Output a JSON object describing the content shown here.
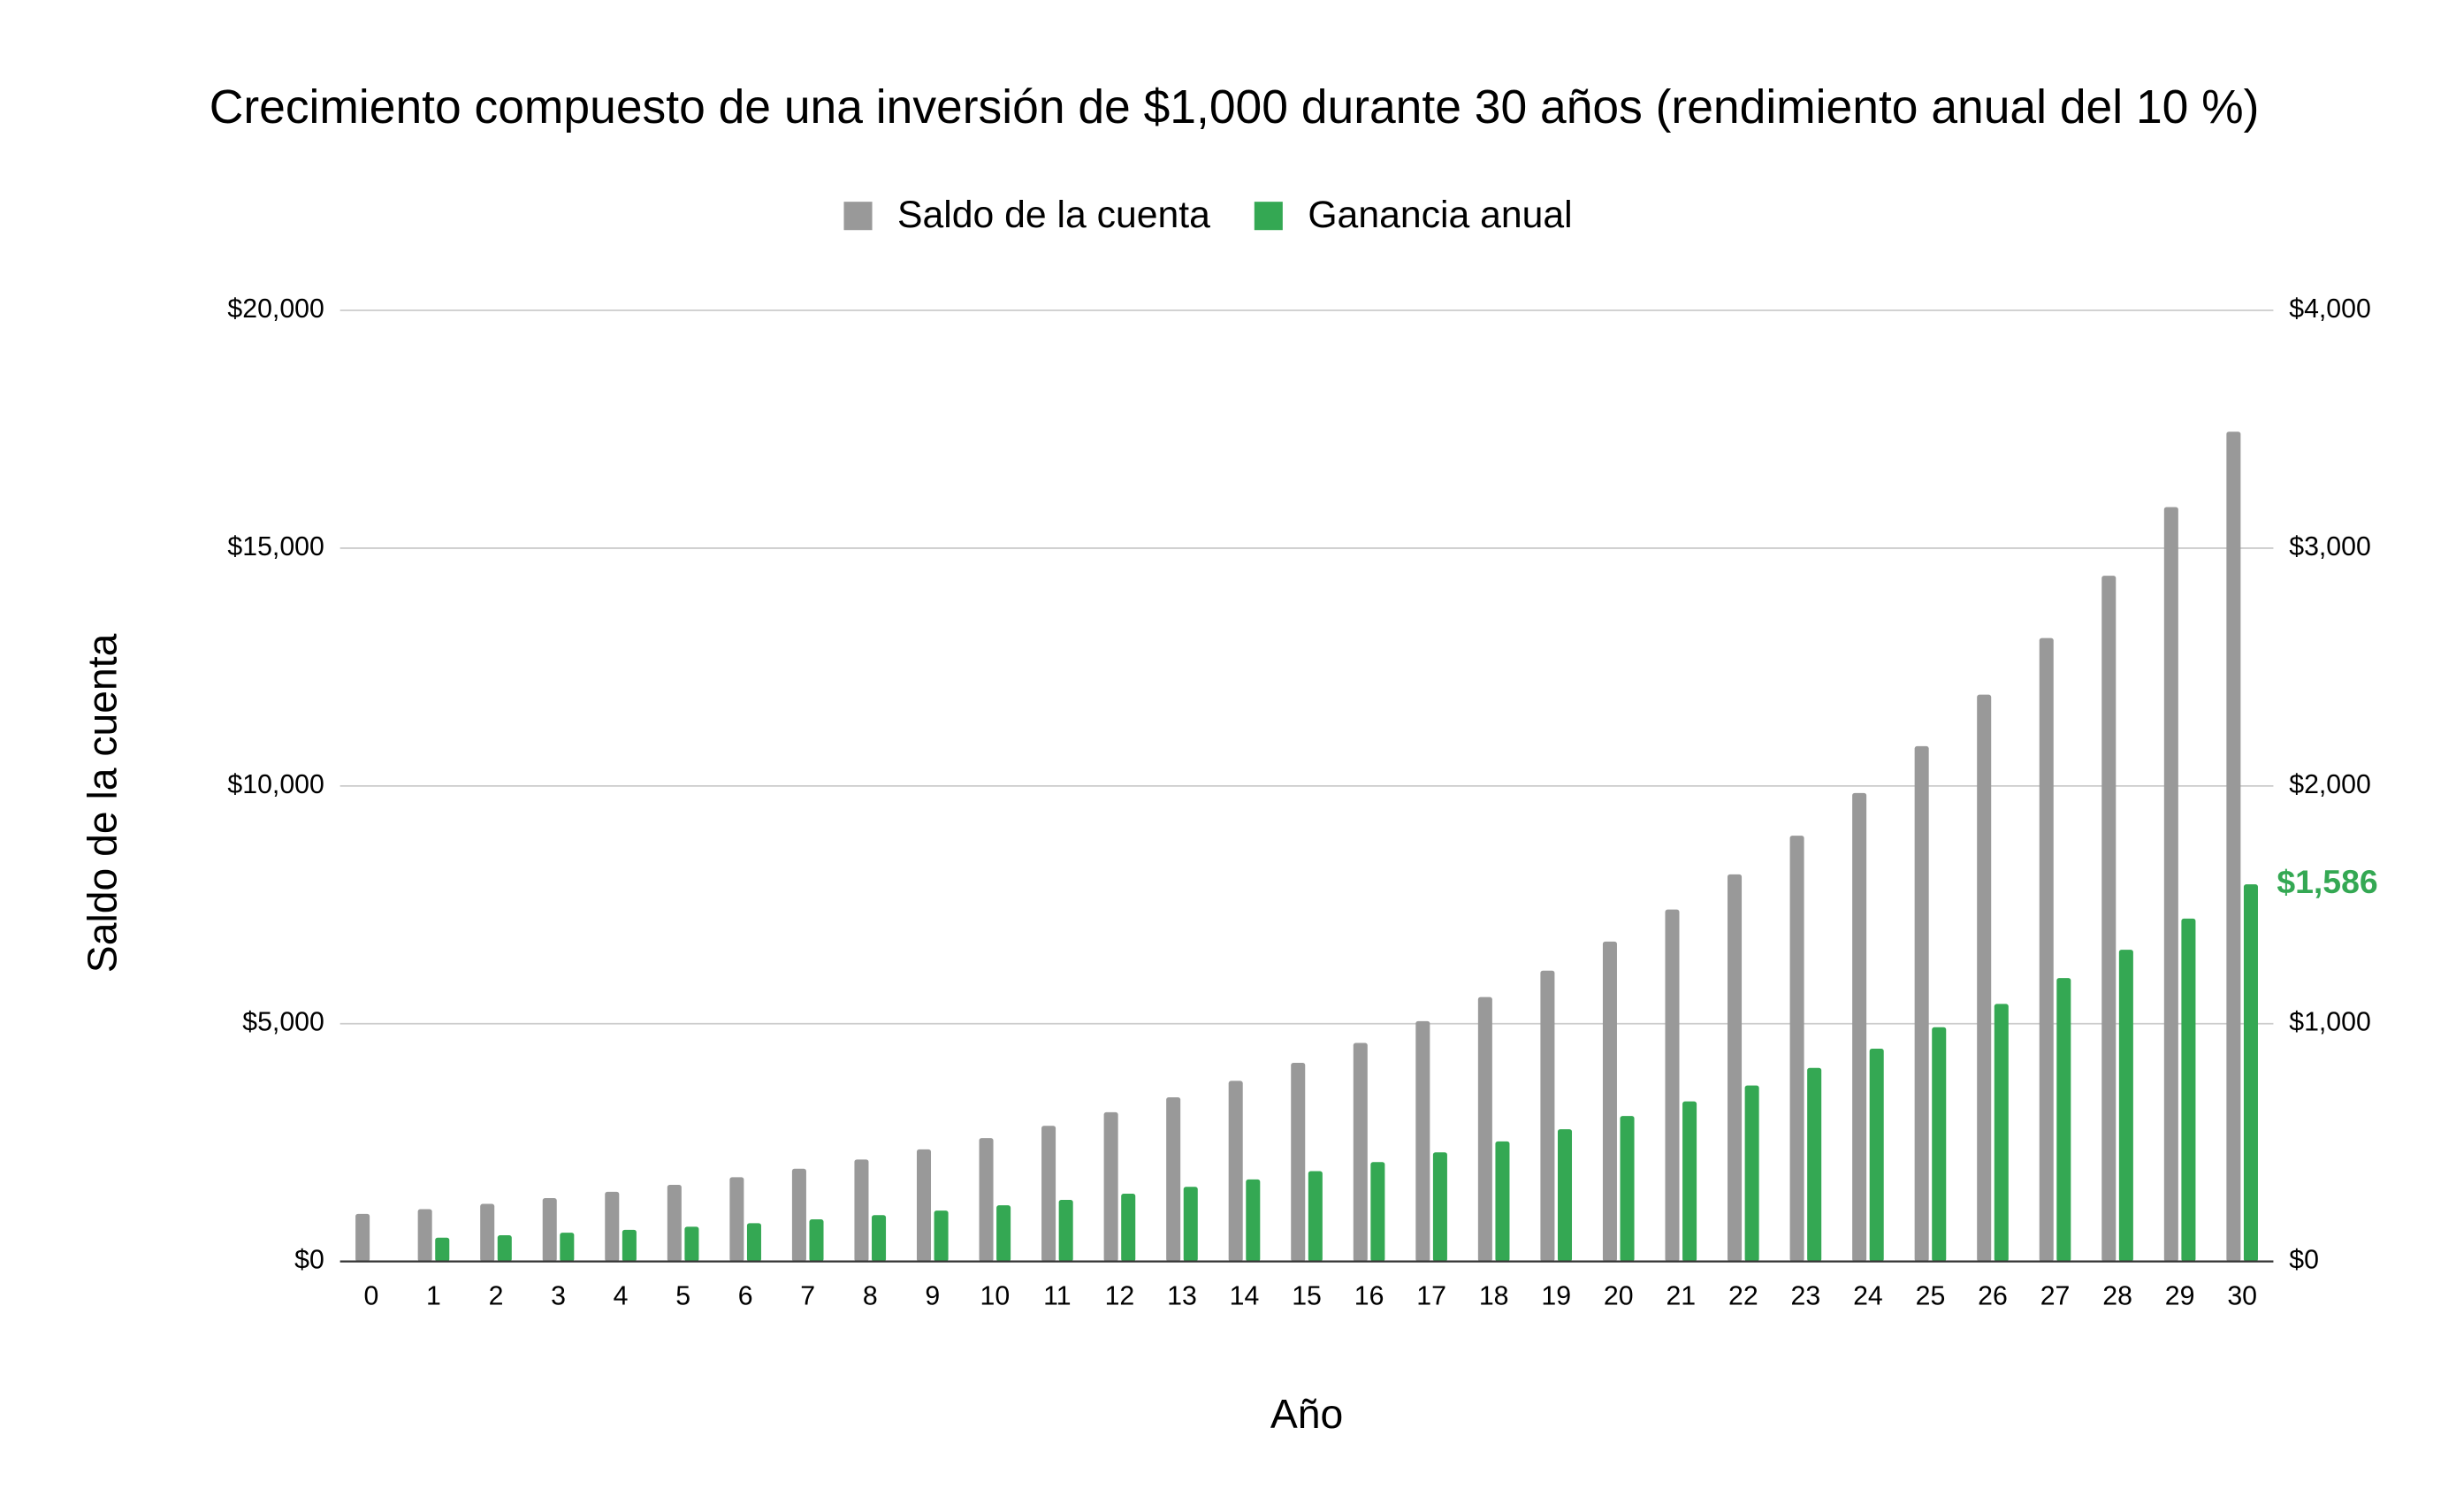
{
  "chart_data": {
    "type": "bar",
    "title": "Crecimiento compuesto de una inversión de $1,000 durante 30 años (rendimiento anual del 10 %)",
    "x_label": "Año",
    "y_label": "Saldo de la cuenta",
    "categories": [
      "0",
      "1",
      "2",
      "3",
      "4",
      "5",
      "6",
      "7",
      "8",
      "9",
      "10",
      "11",
      "12",
      "13",
      "14",
      "15",
      "16",
      "17",
      "18",
      "19",
      "20",
      "21",
      "22",
      "23",
      "24",
      "25",
      "26",
      "27",
      "28",
      "29",
      "30"
    ],
    "series": [
      {
        "name": "Saldo de la cuenta",
        "color": "#999999",
        "axis": "y",
        "values": [
          1000,
          1100,
          1210,
          1331,
          1464,
          1611,
          1772,
          1949,
          2144,
          2358,
          2594,
          2853,
          3138,
          3452,
          3797,
          4177,
          4595,
          5054,
          5560,
          6116,
          6727,
          7400,
          8140,
          8954,
          9850,
          10835,
          11918,
          13110,
          14421,
          15863,
          17449
        ]
      },
      {
        "name": "Ganancia anual",
        "color": "#34a853",
        "axis": "y2",
        "values": [
          0,
          100,
          110,
          121,
          133,
          146,
          161,
          177,
          195,
          214,
          236,
          259,
          285,
          314,
          345,
          380,
          418,
          459,
          505,
          556,
          612,
          673,
          740,
          814,
          895,
          985,
          1083,
          1192,
          1311,
          1442,
          1586
        ],
        "value_labels": [
          null,
          null,
          null,
          null,
          null,
          null,
          null,
          null,
          null,
          null,
          null,
          null,
          null,
          null,
          null,
          null,
          null,
          null,
          null,
          null,
          null,
          null,
          null,
          null,
          null,
          null,
          null,
          null,
          null,
          null,
          "$1,586"
        ]
      }
    ],
    "ylim": [
      0,
      20000
    ],
    "yticks": [
      {
        "value": 0,
        "label": "$0"
      },
      {
        "value": 5000,
        "label": "$5,000"
      },
      {
        "value": 10000,
        "label": "$10,000"
      },
      {
        "value": 15000,
        "label": "$15,000"
      },
      {
        "value": 20000,
        "label": "$20,000"
      }
    ],
    "y2lim": [
      0,
      4000
    ],
    "y2ticks": [
      {
        "value": 0,
        "label": "$0"
      },
      {
        "value": 1000,
        "label": "$1,000"
      },
      {
        "value": 2000,
        "label": "$2,000"
      },
      {
        "value": 3000,
        "label": "$3,000"
      },
      {
        "value": 4000,
        "label": "$4,000"
      }
    ],
    "grid": true,
    "legend": "top"
  }
}
